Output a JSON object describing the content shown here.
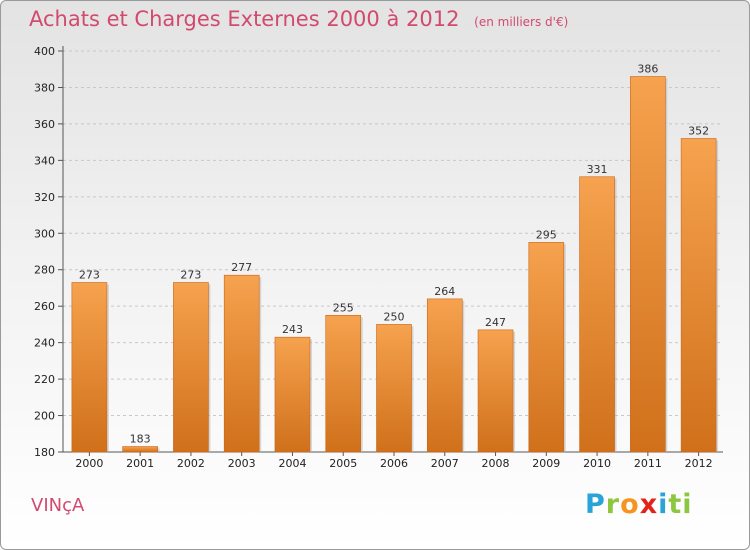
{
  "header": {
    "title": "Achats et Charges Externes 2000 à 2012",
    "subtitle": "(en milliers d'€)"
  },
  "footer": {
    "commune": "VINçA",
    "logo": [
      "P",
      "r",
      "o",
      "x",
      "i",
      "t",
      "i"
    ]
  },
  "colors": {
    "title": "#d24a6e",
    "bar_top": "#f6a24e",
    "bar_bottom": "#d0701b"
  },
  "chart_data": {
    "type": "bar",
    "title": "Achats et Charges Externes 2000 à 2012",
    "subtitle": "(en milliers d'€)",
    "xlabel": "",
    "ylabel": "",
    "categories": [
      "2000",
      "2001",
      "2002",
      "2003",
      "2004",
      "2005",
      "2006",
      "2007",
      "2008",
      "2009",
      "2010",
      "2011",
      "2012"
    ],
    "values": [
      273,
      183,
      273,
      277,
      243,
      255,
      250,
      264,
      247,
      295,
      331,
      386,
      352
    ],
    "ylim": [
      180,
      400
    ],
    "yticks": [
      180,
      200,
      220,
      240,
      260,
      280,
      300,
      320,
      340,
      360,
      380,
      400
    ],
    "grid": true,
    "legend": "none"
  }
}
